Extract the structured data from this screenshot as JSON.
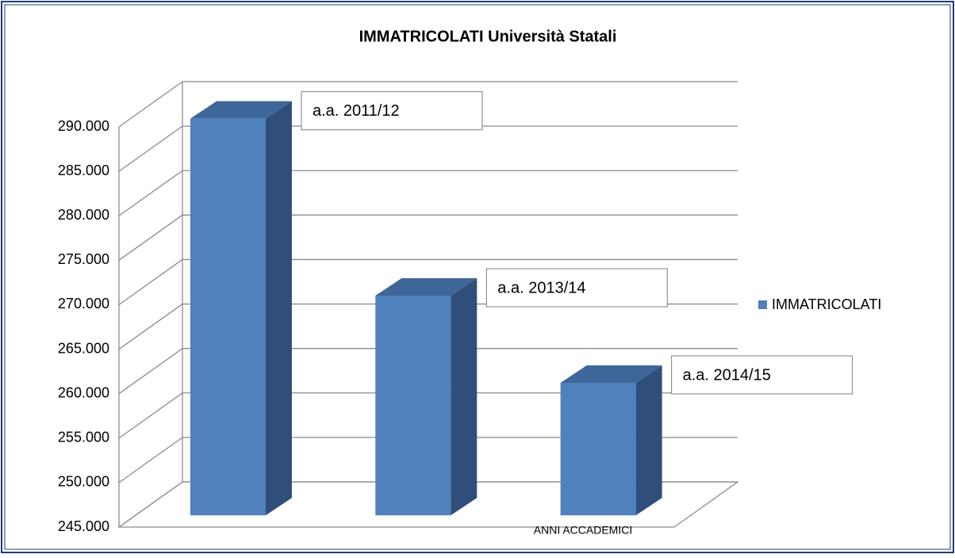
{
  "chart_data": {
    "type": "bar3d",
    "title": "IMMATRICOLATI Università Statali",
    "x_label": "ANNI ACCADEMICI",
    "categories": [
      "a.a. 2011/12",
      "a.a. 2013/14",
      "a.a. 2014/15"
    ],
    "series": [
      {
        "name": "IMMATRICOLATI",
        "color": "#4f81bd",
        "values": [
          289600,
          269700,
          259900
        ]
      }
    ],
    "ylim": [
      245000,
      290000
    ],
    "yticks": [
      {
        "value": 245000,
        "label": "245.000"
      },
      {
        "value": 250000,
        "label": "250.000"
      },
      {
        "value": 255000,
        "label": "255.000"
      },
      {
        "value": 260000,
        "label": "260.000"
      },
      {
        "value": 265000,
        "label": "265.000"
      },
      {
        "value": 270000,
        "label": "270.000"
      },
      {
        "value": 275000,
        "label": "275.000"
      },
      {
        "value": 280000,
        "label": "280.000"
      },
      {
        "value": 285000,
        "label": "285.000"
      },
      {
        "value": 290000,
        "label": "290.000"
      }
    ],
    "grid": true,
    "legend": "right"
  }
}
